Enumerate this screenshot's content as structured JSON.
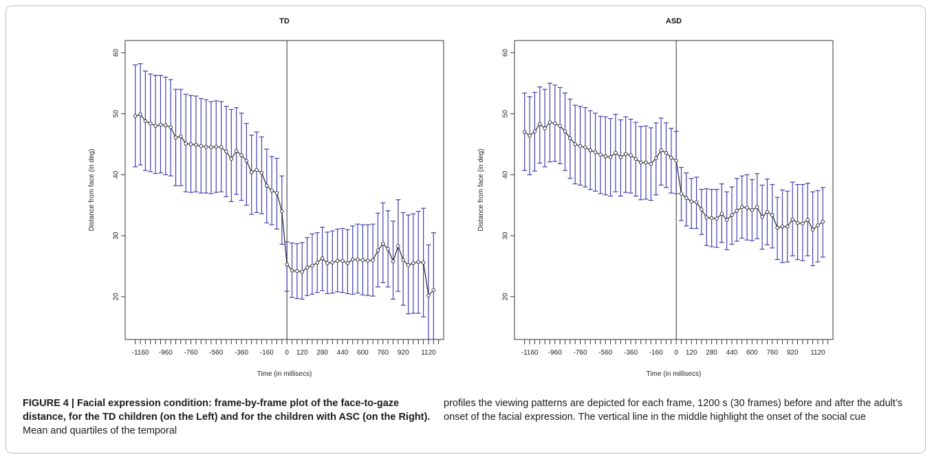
{
  "chart_data": [
    {
      "type": "line",
      "title": "TD",
      "xlabel": "Time (in millisecs)",
      "ylabel": "Distance from face (in deg)",
      "ylim": [
        13,
        62
      ],
      "xlim": [
        -1280,
        1240
      ],
      "yticks": [
        20,
        30,
        40,
        50,
        60
      ],
      "xticks": [
        -1160,
        -960,
        -760,
        -560,
        -360,
        -160,
        0,
        120,
        280,
        440,
        600,
        760,
        920,
        1120
      ],
      "grid": false,
      "vline_x": 0,
      "x_start": -1200,
      "x_step": 40,
      "mean": [
        49.6,
        49.9,
        48.8,
        48.4,
        48.0,
        48.2,
        48.1,
        47.8,
        46.1,
        46.3,
        45.1,
        45.0,
        44.9,
        44.7,
        44.6,
        44.5,
        44.6,
        44.5,
        43.8,
        42.6,
        43.9,
        43.2,
        42.3,
        40.4,
        40.8,
        40.3,
        38.2,
        37.4,
        37.0,
        34.0,
        25.3,
        24.3,
        24.2,
        24.1,
        24.8,
        25.1,
        25.6,
        26.3,
        25.5,
        25.6,
        25.9,
        25.9,
        25.5,
        26.1,
        26.1,
        26.0,
        25.9,
        26.0,
        27.6,
        28.7,
        27.8,
        25.8,
        28.3,
        26.0,
        25.2,
        25.5,
        25.7,
        25.6,
        20.2,
        21.1
      ],
      "upper": [
        58.0,
        58.2,
        57.0,
        56.5,
        56.3,
        56.3,
        56.0,
        55.6,
        54.0,
        54.0,
        53.2,
        53.0,
        52.9,
        52.5,
        52.3,
        52.0,
        52.1,
        52.0,
        51.2,
        50.7,
        51.0,
        50.1,
        48.4,
        46.5,
        47.0,
        46.2,
        44.2,
        43.0,
        42.7,
        39.8,
        29.0,
        28.8,
        28.7,
        28.9,
        29.7,
        30.3,
        30.5,
        31.4,
        30.6,
        30.8,
        31.1,
        31.2,
        31.0,
        31.6,
        31.9,
        31.8,
        31.8,
        31.9,
        33.7,
        35.4,
        34.1,
        32.4,
        35.9,
        33.8,
        33.4,
        33.6,
        34.0,
        34.5,
        28.5,
        30.5
      ],
      "lower": [
        41.3,
        41.6,
        40.7,
        40.5,
        40.2,
        40.3,
        40.0,
        39.8,
        38.2,
        38.2,
        37.2,
        37.1,
        37.2,
        37.0,
        37.0,
        36.9,
        37.1,
        37.2,
        36.4,
        35.6,
        36.8,
        35.8,
        35.0,
        33.5,
        33.8,
        33.6,
        32.1,
        31.8,
        31.1,
        28.6,
        20.9,
        19.9,
        19.7,
        19.6,
        20.2,
        20.4,
        20.7,
        21.0,
        20.5,
        20.6,
        20.8,
        20.7,
        20.5,
        20.4,
        20.6,
        20.3,
        20.2,
        20.1,
        21.6,
        22.3,
        21.6,
        19.6,
        20.9,
        18.6,
        17.2,
        17.3,
        17.3,
        16.7,
        13.0,
        13.0
      ]
    },
    {
      "type": "line",
      "title": "ASD",
      "xlabel": "Time (in millisecs)",
      "ylabel": "Distance from face (in deg)",
      "ylim": [
        13,
        62
      ],
      "xlim": [
        -1280,
        1240
      ],
      "yticks": [
        20,
        30,
        40,
        50,
        60
      ],
      "xticks": [
        -1160,
        -960,
        -760,
        -560,
        -360,
        -160,
        0,
        120,
        280,
        440,
        600,
        760,
        920,
        1120
      ],
      "grid": false,
      "vline_x": 0,
      "x_start": -1200,
      "x_step": 40,
      "mean": [
        47.0,
        46.4,
        47.1,
        48.3,
        47.6,
        48.6,
        48.4,
        48.0,
        47.1,
        46.0,
        45.0,
        44.7,
        44.5,
        44.0,
        43.7,
        43.3,
        43.0,
        42.9,
        43.6,
        42.9,
        43.4,
        43.2,
        42.6,
        42.0,
        42.0,
        41.8,
        42.7,
        44.0,
        43.6,
        42.8,
        42.3,
        36.9,
        36.2,
        35.6,
        35.5,
        34.3,
        33.0,
        32.9,
        32.8,
        33.6,
        32.6,
        33.4,
        34.1,
        34.7,
        34.6,
        34.2,
        34.7,
        33.1,
        33.9,
        33.4,
        31.3,
        31.5,
        31.5,
        32.7,
        32.1,
        32.0,
        32.6,
        31.0,
        31.7,
        32.3
      ],
      "upper": [
        53.4,
        52.8,
        53.5,
        54.4,
        54.0,
        55.0,
        54.7,
        54.3,
        53.4,
        52.4,
        51.4,
        51.2,
        51.0,
        50.5,
        50.1,
        49.6,
        49.5,
        49.2,
        49.9,
        49.0,
        49.5,
        49.1,
        48.6,
        47.9,
        48.0,
        47.7,
        48.5,
        49.3,
        48.5,
        47.6,
        47.1,
        41.2,
        40.3,
        39.4,
        39.6,
        37.6,
        37.7,
        37.6,
        37.6,
        38.5,
        37.2,
        38.0,
        39.4,
        39.8,
        40.0,
        39.2,
        40.2,
        38.3,
        39.3,
        38.4,
        36.3,
        37.5,
        37.3,
        38.8,
        38.4,
        38.4,
        38.6,
        37.2,
        37.4,
        37.9
      ],
      "lower": [
        40.7,
        40.0,
        40.6,
        41.9,
        41.3,
        42.1,
        42.2,
        41.8,
        40.7,
        39.4,
        38.5,
        38.3,
        38.0,
        37.6,
        37.3,
        36.9,
        36.7,
        36.5,
        37.2,
        36.5,
        37.1,
        37.0,
        36.5,
        35.9,
        36.0,
        35.8,
        36.7,
        38.3,
        37.9,
        37.0,
        36.9,
        32.5,
        31.6,
        31.2,
        31.2,
        30.2,
        28.4,
        28.2,
        28.1,
        28.9,
        27.7,
        28.6,
        29.1,
        29.6,
        29.3,
        29.2,
        29.5,
        27.8,
        28.5,
        28.0,
        26.1,
        25.6,
        25.7,
        26.7,
        26.1,
        25.9,
        26.7,
        25.1,
        25.7,
        26.5
      ]
    }
  ],
  "caption": {
    "label": "FIGURE 4 | Facial expression condition: frame-by-frame plot of the face-to-gaze distance, for the TD children (on the Left) and for the children with ASC (on the Right).",
    "text_left": " Mean and quartiles of the temporal",
    "text_right": "profiles the viewing patterns are depicted for each frame, 1200 s (30 frames) before and after the adult’s onset of the facial expression. The vertical line in the middle highlight the onset of the social cue"
  }
}
